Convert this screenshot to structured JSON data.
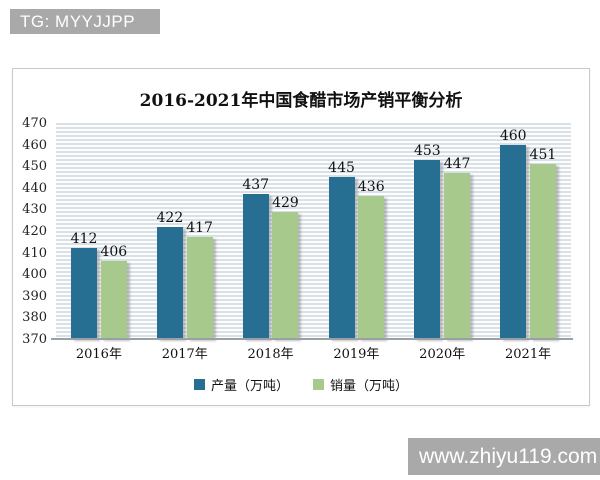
{
  "badges": {
    "top_left": "TG: MYYJJPP",
    "bottom_right": "www.zhiyu119.com"
  },
  "chart_data": {
    "type": "bar",
    "title": "2016-2021年中国食醋市场产销平衡分析",
    "categories": [
      "2016年",
      "2017年",
      "2018年",
      "2019年",
      "2020年",
      "2021年"
    ],
    "series": [
      {
        "name": "产量（万吨）",
        "color": "#266f93",
        "values": [
          412,
          422,
          437,
          445,
          453,
          460
        ]
      },
      {
        "name": "销量（万吨）",
        "color": "#a7c98c",
        "values": [
          406,
          417,
          429,
          436,
          447,
          451
        ]
      }
    ],
    "ylim": [
      370,
      470
    ],
    "ytick_step": 10,
    "xlabel": "",
    "ylabel": "",
    "grid": "horizontal-stripes",
    "legend_position": "bottom"
  },
  "colors": {
    "badge_background": "#a9a9a9",
    "badge_text": "#ffffff",
    "panel_border": "#c9c9c9",
    "stripe": "#d9e1e7",
    "axis_line": "#9aa1a6",
    "text": "#111111"
  }
}
